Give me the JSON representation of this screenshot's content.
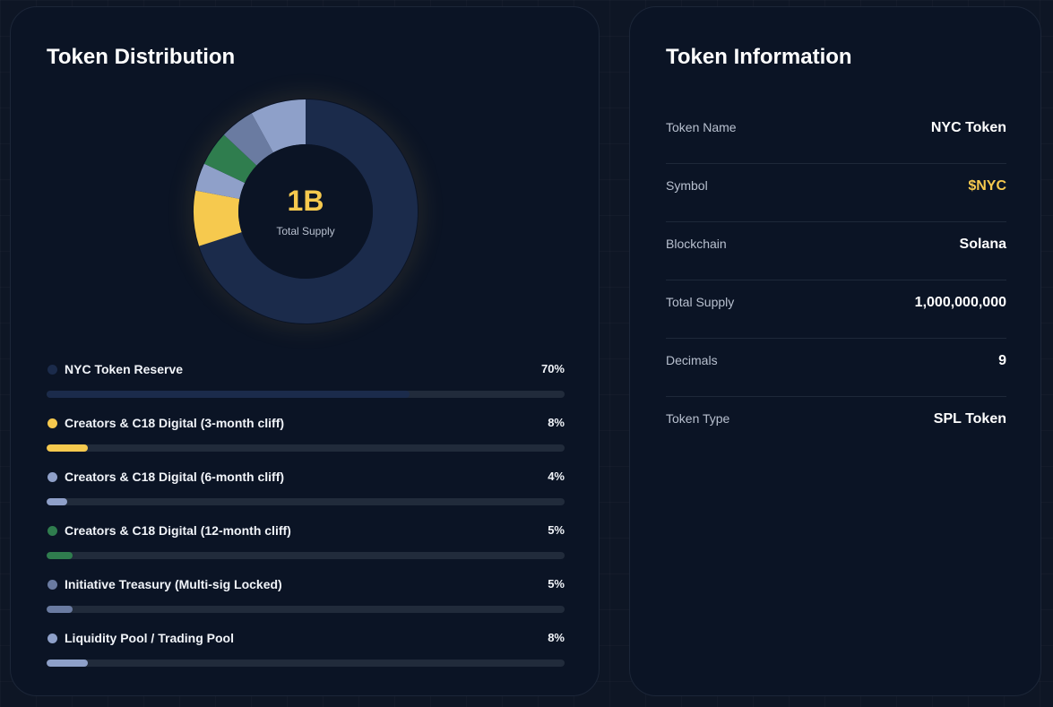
{
  "distribution": {
    "title": "Token Distribution",
    "donut_center_value": "1B",
    "donut_center_label": "Total Supply",
    "items": [
      {
        "label": "NYC Token Reserve",
        "percent": "70%",
        "value": 70,
        "color": "#1b2b4b"
      },
      {
        "label": "Creators & C18 Digital (3-month cliff)",
        "percent": "8%",
        "value": 8,
        "color": "#f6c94e"
      },
      {
        "label": "Creators & C18 Digital (6-month cliff)",
        "percent": "4%",
        "value": 4,
        "color": "#8fa0c9"
      },
      {
        "label": "Creators & C18 Digital (12-month cliff)",
        "percent": "5%",
        "value": 5,
        "color": "#2f7d4e"
      },
      {
        "label": "Initiative Treasury (Multi-sig Locked)",
        "percent": "5%",
        "value": 5,
        "color": "#6a7ba1"
      },
      {
        "label": "Liquidity Pool / Trading Pool",
        "percent": "8%",
        "value": 8,
        "color": "#8ea0c9"
      }
    ]
  },
  "info": {
    "title": "Token Information",
    "rows": [
      {
        "label": "Token Name",
        "value": "NYC Token"
      },
      {
        "label": "Symbol",
        "value": "$NYC",
        "accent": true
      },
      {
        "label": "Blockchain",
        "value": "Solana"
      },
      {
        "label": "Total Supply",
        "value": "1,000,000,000"
      },
      {
        "label": "Decimals",
        "value": "9"
      },
      {
        "label": "Token Type",
        "value": "SPL Token"
      }
    ]
  },
  "chart_data": {
    "type": "pie",
    "title": "Token Distribution",
    "categories": [
      "NYC Token Reserve",
      "Creators & C18 Digital (3-month cliff)",
      "Creators & C18 Digital (6-month cliff)",
      "Creators & C18 Digital (12-month cliff)",
      "Initiative Treasury (Multi-sig Locked)",
      "Liquidity Pool / Trading Pool"
    ],
    "values": [
      70,
      8,
      4,
      5,
      5,
      8
    ],
    "center_value": "1B",
    "center_label": "Total Supply"
  }
}
